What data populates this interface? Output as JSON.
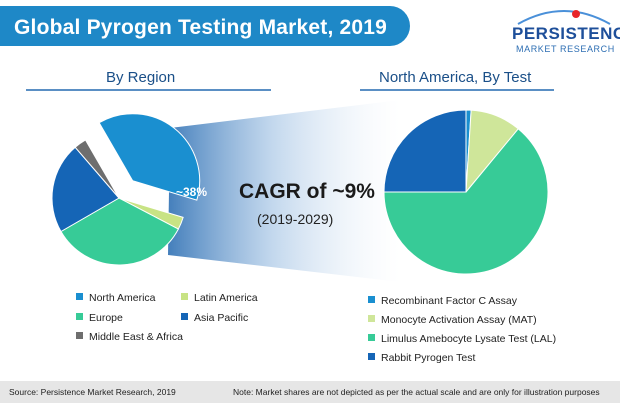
{
  "header": {
    "title": "Global Pyrogen Testing Market, 2019",
    "logo_main": "PERSISTENCE",
    "logo_sub": "MARKET RESEARCH"
  },
  "left": {
    "heading": "By Region"
  },
  "right": {
    "heading": "North America, By Test"
  },
  "center": {
    "cagr": "CAGR of ~9%",
    "period": "(2019-2029)",
    "highlight_label": "~38%"
  },
  "footer": {
    "source": "Source: Persistence Market Research, 2019",
    "note": "Note: Market shares are not depicted as per the actual scale and are only for illustration purposes"
  },
  "colors": {
    "brand": "#1e88c7",
    "north_america": "#1a8fd0",
    "europe": "#37cb97",
    "asia_pacific": "#1565b6",
    "latin_america": "#c8e384",
    "mea": "#6e6e6e",
    "rfc": "#1a8fd0",
    "mat": "#cfe69a",
    "lal": "#37cb97",
    "rpt": "#1565b6"
  },
  "chart_data": [
    {
      "type": "pie",
      "title": "By Region",
      "labels": [
        "North America",
        "Latin America",
        "Europe",
        "Asia Pacific",
        "Middle East & Africa"
      ],
      "values": [
        38,
        3,
        34,
        22,
        3
      ],
      "legend": [
        "North America",
        "Latin America",
        "Europe",
        "Asia Pacific",
        "Middle East & Africa"
      ],
      "data_labels": [
        "~38%"
      ]
    },
    {
      "type": "pie",
      "title": "North America, By Test",
      "labels": [
        "Recombinant Factor C Assay",
        "Monocyte Activation Assay (MAT)",
        "Limulus Amebocyte Lysate Test (LAL)",
        "Rabbit Pyrogen Test"
      ],
      "values": [
        1,
        10,
        64,
        25
      ],
      "legend": [
        "Recombinant Factor C Assay",
        "Monocyte Activation Assay (MAT)",
        "Limulus Amebocyte Lysate Test (LAL)",
        "Rabbit Pyrogen Test"
      ]
    }
  ]
}
